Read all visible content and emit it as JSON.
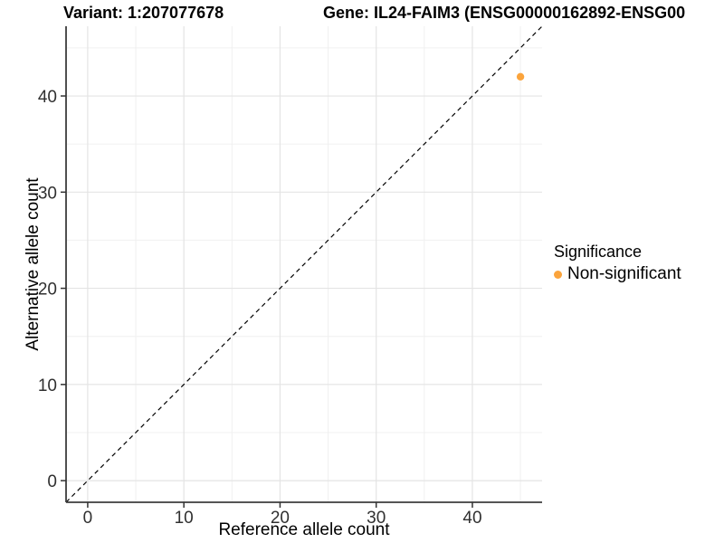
{
  "chart_data": {
    "type": "scatter",
    "title_left": "Variant: 1:207077678",
    "title_right": "Gene: IL24-FAIM3 (ENSG00000162892-ENSG00",
    "xlabel": "Reference allele count",
    "ylabel": "Alternative allele count",
    "xlim": [
      -2.25,
      47.25
    ],
    "ylim": [
      -2.25,
      47.25
    ],
    "x_ticks": [
      0,
      10,
      20,
      30,
      40
    ],
    "y_ticks": [
      0,
      10,
      20,
      30,
      40
    ],
    "x_minor_ticks": [
      5,
      15,
      25,
      35,
      45
    ],
    "y_minor_ticks": [
      5,
      15,
      25,
      35,
      45
    ],
    "grid": "major and minor gridlines, light gray on white panel",
    "reference_line": {
      "type": "identity y=x",
      "style": "dashed",
      "color": "#000000"
    },
    "series": [
      {
        "name": "Non-significant",
        "color": "#FBA43C",
        "points": [
          {
            "x": 45,
            "y": 42
          }
        ]
      }
    ],
    "legend": {
      "title": "Significance",
      "position": "right",
      "entries": [
        {
          "label": "Non-significant",
          "color": "#FBA43C"
        }
      ]
    }
  },
  "colors": {
    "background": "#FFFFFF",
    "grid_major": "#E4E4E4",
    "grid_minor": "#F0F0F0",
    "axis_line": "#3D3D3D",
    "tick_mark": "#333333",
    "tick_label": "#303030",
    "point": "#FBA43C"
  }
}
